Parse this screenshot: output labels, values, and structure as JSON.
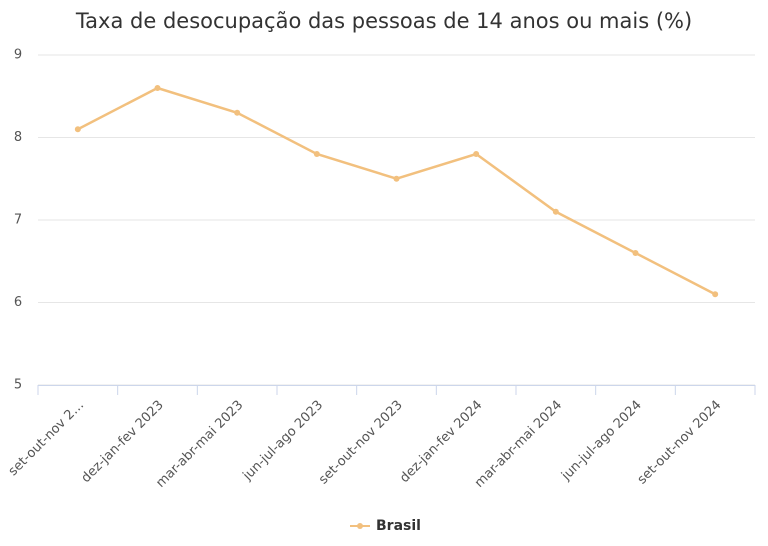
{
  "chart_data": {
    "type": "line",
    "title": "Taxa de desocupação das pessoas de 14 anos ou mais (%)",
    "categories": [
      "set-out-nov 2…",
      "dez-jan-fev 2023",
      "mar-abr-mai 2023",
      "jun-jul-ago 2023",
      "set-out-nov 2023",
      "dez-jan-fev 2024",
      "mar-abr-mai 2024",
      "jun-jul-ago 2024",
      "set-out-nov 2024"
    ],
    "series": [
      {
        "name": "Brasil",
        "color": "#f2c07e",
        "values": [
          8.1,
          8.6,
          8.3,
          7.8,
          7.5,
          7.8,
          7.1,
          6.6,
          6.1
        ]
      }
    ],
    "ylim": [
      5,
      9
    ],
    "yticks": [
      5,
      6,
      7,
      8,
      9
    ],
    "grid": true
  }
}
